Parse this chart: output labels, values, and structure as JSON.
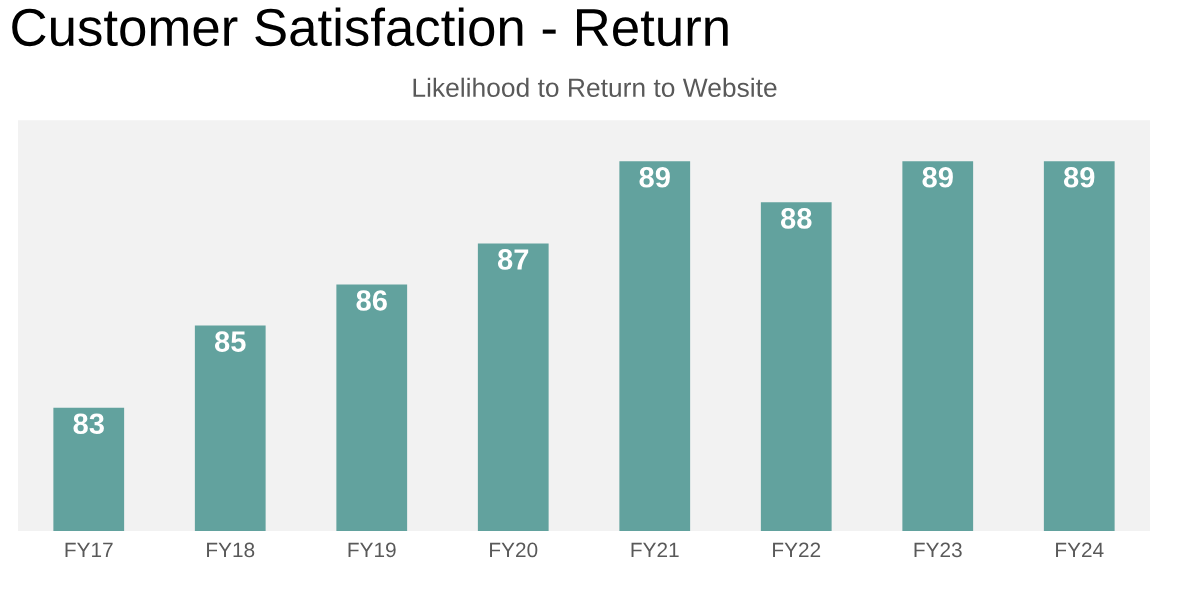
{
  "chart_data": {
    "type": "bar",
    "title": "Customer Satisfaction - Return",
    "subtitle": "Likelihood to Return to Website",
    "categories": [
      "FY17",
      "FY18",
      "FY19",
      "FY20",
      "FY21",
      "FY22",
      "FY23",
      "FY24"
    ],
    "values": [
      83,
      85,
      86,
      87,
      89,
      88,
      89,
      89
    ],
    "color": "#62a29e",
    "ylim": [
      80,
      90
    ],
    "data_labels": true,
    "tick_labels": "x",
    "grid": false,
    "legend": false
  }
}
